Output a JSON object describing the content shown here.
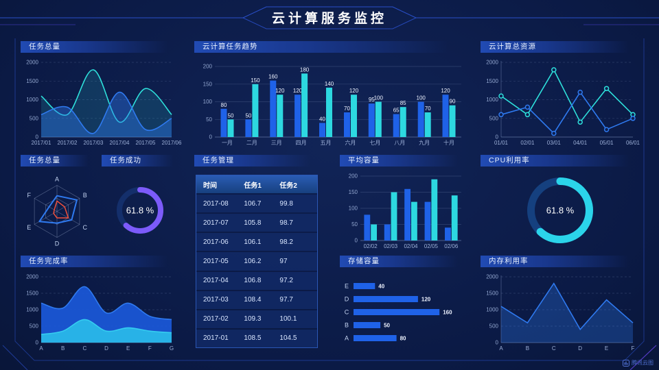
{
  "title": "云计算服务监控",
  "watermark": "腾讯云图",
  "colors": {
    "background": "#0c1c4c",
    "blue": "#1f62e8",
    "cyan": "#2dd8e0",
    "teal_line": "#2ee0db",
    "blue_line": "#2f7af0",
    "purple_donut": "#7c5bfa",
    "cyan_donut": "#2bd4ea",
    "radar_red": "#f0503c",
    "donut_track": "#143572"
  },
  "chart_data": [
    {
      "id": "task_total",
      "type": "area",
      "title": "任务总量",
      "smooth": true,
      "dash": true,
      "x": [
        "2017/01",
        "2017/02",
        "2017/03",
        "2017/04",
        "2017/05",
        "2017/06"
      ],
      "ylim": [
        0,
        2000
      ],
      "yticks": [
        0,
        500,
        1000,
        1500,
        2000
      ],
      "series": [
        {
          "name": "cyan",
          "color": "#2ee0db",
          "fill": 0.15,
          "values": [
            1100,
            600,
            1800,
            400,
            1300,
            600
          ]
        },
        {
          "name": "blue",
          "color": "#2f7af0",
          "fill": 0.4,
          "values": [
            600,
            800,
            100,
            1200,
            200,
            500
          ]
        }
      ]
    },
    {
      "id": "task_trend",
      "type": "bar",
      "title": "云计算任务趋势",
      "value_labels": true,
      "categories": [
        "一月",
        "二月",
        "三月",
        "四月",
        "五月",
        "六月",
        "七月",
        "八月",
        "九月",
        "十月"
      ],
      "ylim": [
        0,
        200
      ],
      "yticks": [
        0,
        50,
        100,
        150,
        200
      ],
      "series": [
        {
          "name": "blue",
          "color": "#1f62e8",
          "values": [
            80,
            50,
            160,
            120,
            40,
            70,
            95,
            65,
            100,
            120
          ]
        },
        {
          "name": "cyan",
          "color": "#2dd8e0",
          "values": [
            50,
            150,
            120,
            180,
            140,
            120,
            100,
            85,
            70,
            90
          ]
        }
      ]
    },
    {
      "id": "total_resources",
      "type": "line",
      "title": "云计算总资源",
      "markers": true,
      "dash": true,
      "yaxis": true,
      "x": [
        "01/01",
        "02/01",
        "03/01",
        "04/01",
        "05/01",
        "06/01"
      ],
      "ylim": [
        0,
        2000
      ],
      "yticks": [
        0,
        500,
        1000,
        1500,
        2000
      ],
      "series": [
        {
          "name": "cyan",
          "color": "#2ee0db",
          "values": [
            1100,
            600,
            1800,
            400,
            1300,
            600
          ]
        },
        {
          "name": "blue",
          "color": "#2f7af0",
          "values": [
            600,
            800,
            100,
            1200,
            200,
            500
          ]
        }
      ]
    },
    {
      "id": "task_radar",
      "type": "radar",
      "title": "任务总量",
      "max": 100,
      "axes": [
        "A",
        "B",
        "C",
        "D",
        "E",
        "F"
      ],
      "series": [
        {
          "name": "blue",
          "color": "#2f7af0",
          "width": 2,
          "values": [
            60,
            88,
            65,
            45,
            78,
            35
          ]
        },
        {
          "name": "red",
          "color": "#f0503c",
          "width": 1.5,
          "values": [
            40,
            34,
            50,
            25,
            15,
            12
          ]
        }
      ]
    },
    {
      "id": "task_success",
      "type": "donut",
      "title": "任务成功",
      "percent": 61.8,
      "percent_label": "61.8 %",
      "color": "#7c5bfa",
      "track": "#142f6b",
      "size": 70,
      "thickness": 8
    },
    {
      "id": "task_table",
      "type": "table",
      "title": "任务管理",
      "headers": [
        "时间",
        "任务1",
        "任务2"
      ],
      "rows": [
        [
          "2017-08",
          "106.7",
          "99.8"
        ],
        [
          "2017-07",
          "105.8",
          "98.7"
        ],
        [
          "2017-06",
          "106.1",
          "98.2"
        ],
        [
          "2017-05",
          "106.2",
          "97"
        ],
        [
          "2017-04",
          "106.8",
          "97.2"
        ],
        [
          "2017-03",
          "108.4",
          "97.7"
        ],
        [
          "2017-02",
          "109.3",
          "100.1"
        ],
        [
          "2017-01",
          "108.5",
          "104.5"
        ]
      ]
    },
    {
      "id": "avg_capacity",
      "type": "bar",
      "title": "平均容量",
      "categories": [
        "02/02",
        "02/03",
        "02/04",
        "02/05",
        "02/06"
      ],
      "ylim": [
        0,
        200
      ],
      "yticks": [
        0,
        50,
        100,
        150,
        200
      ],
      "series": [
        {
          "name": "blue",
          "color": "#1f62e8",
          "values": [
            80,
            50,
            160,
            120,
            40
          ]
        },
        {
          "name": "cyan",
          "color": "#2dd8e0",
          "values": [
            50,
            150,
            120,
            190,
            140
          ]
        }
      ]
    },
    {
      "id": "cpu_util",
      "type": "donut",
      "title": "CPU利用率",
      "percent": 61.8,
      "percent_label": "61.8 %",
      "color": "#2bd4ea",
      "track": "#15407f",
      "size": 98,
      "thickness": 11
    },
    {
      "id": "task_completion",
      "type": "area",
      "title": "任务完成率",
      "smooth": true,
      "dash": true,
      "x": [
        "A",
        "B",
        "C",
        "D",
        "E",
        "F",
        "G"
      ],
      "ylim": [
        0,
        2000
      ],
      "yticks": [
        0,
        500,
        1000,
        1500,
        2000
      ],
      "series": [
        {
          "name": "blue",
          "color": "#2f7af0",
          "fill": 0.88,
          "fillcolor": "#1b5be0",
          "values": [
            1200,
            1050,
            1700,
            900,
            1200,
            800,
            700
          ]
        },
        {
          "name": "cyan",
          "color": "#35cdf0",
          "fill": 0.95,
          "fillcolor": "#29b7e8",
          "values": [
            250,
            350,
            700,
            350,
            450,
            350,
            300
          ]
        }
      ]
    },
    {
      "id": "storage",
      "type": "hbar",
      "title": "存储容量",
      "xmax": 170,
      "categories": [
        "E",
        "D",
        "C",
        "B",
        "A"
      ],
      "values": [
        40,
        120,
        160,
        50,
        80
      ],
      "color": "#1f62e8"
    },
    {
      "id": "mem_util",
      "type": "line",
      "title": "内存利用率",
      "dash": true,
      "yaxis": true,
      "x": [
        "A",
        "B",
        "C",
        "D",
        "E",
        "F"
      ],
      "ylim": [
        0,
        2000
      ],
      "yticks": [
        0,
        500,
        1000,
        1500,
        2000
      ],
      "series": [
        {
          "name": "blue",
          "color": "#2f7af0",
          "fill": 0.3,
          "values": [
            1100,
            600,
            1800,
            400,
            1300,
            600
          ]
        }
      ]
    }
  ]
}
